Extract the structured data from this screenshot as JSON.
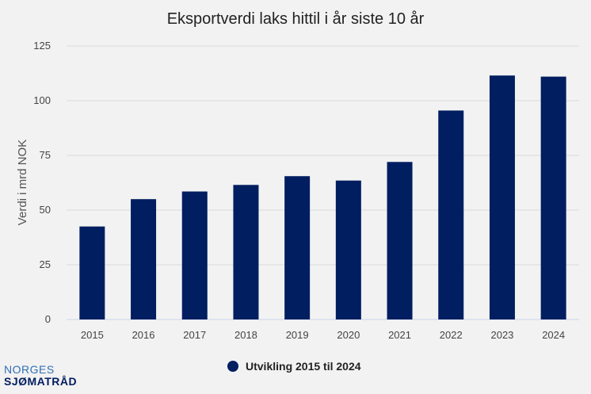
{
  "chart_data": {
    "type": "bar",
    "title": "Eksportverdi laks hittil i år siste 10 år",
    "ylabel": "Verdi i mrd NOK",
    "xlabel": "",
    "categories": [
      "2015",
      "2016",
      "2017",
      "2018",
      "2019",
      "2020",
      "2021",
      "2022",
      "2023",
      "2024"
    ],
    "series": [
      {
        "name": "Utvikling 2015 til 2024",
        "values": [
          42.5,
          55,
          58.5,
          61.5,
          65.5,
          63.5,
          72,
          95.5,
          111.5,
          111
        ]
      }
    ],
    "ylim": [
      0,
      125
    ],
    "yticks": [
      0,
      25,
      50,
      75,
      100,
      125
    ],
    "grid": true,
    "legend": "bottom-center",
    "colors": {
      "bar": "#001e60",
      "grid": "#d9d9d9",
      "axis": "#ccd6eb",
      "background": "#f2f2f2"
    }
  },
  "logo": {
    "line1": "NORGES",
    "line2": "SJØMATRÅD"
  }
}
